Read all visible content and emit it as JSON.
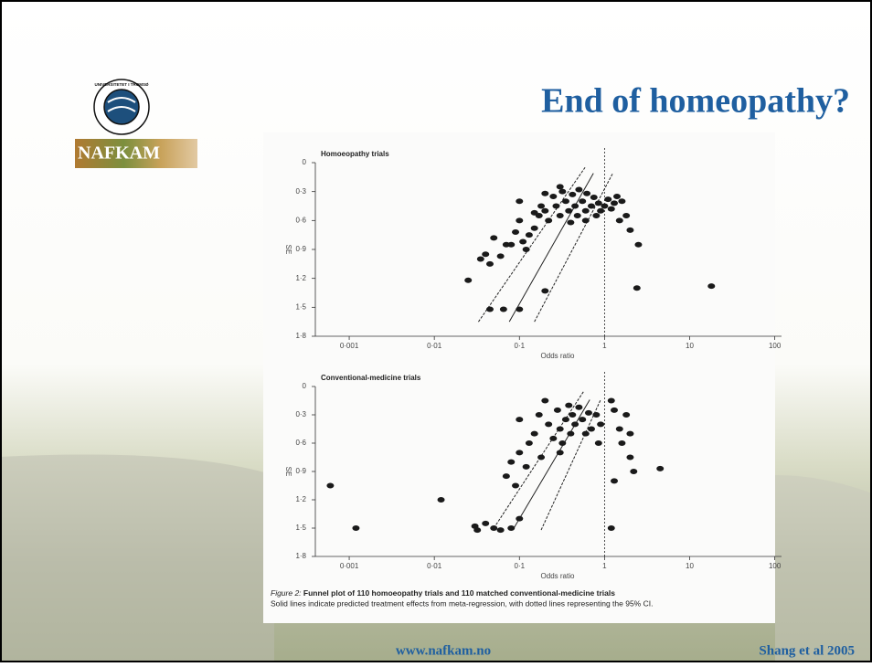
{
  "slide_title": "End of homeopathy?",
  "logos": {
    "university": "UNIVERSITETET I TROMSØ",
    "nafkam": "NAFKAM"
  },
  "footer": {
    "url": "www.nafkam.no",
    "source": "Shang et al 2005"
  },
  "caption": {
    "label": "Figure 2:",
    "title": "Funnel plot of 110 homoeopathy trials and 110 matched conventional-medicine trials",
    "note": "Solid lines indicate predicted treatment effects from meta-regression, with dotted lines representing the 95% CI."
  },
  "chart_data": [
    {
      "type": "scatter",
      "title": "Homoeopathy trials",
      "x_label": "Odds ratio",
      "y_label": "SE",
      "x_log": true,
      "y_reversed": true,
      "xlim": [
        0.0004,
        120
      ],
      "ylim": [
        0,
        1.8
      ],
      "xticks": [
        {
          "value": 0.001,
          "label": "0·001"
        },
        {
          "value": 0.01,
          "label": "0·01"
        },
        {
          "value": 0.1,
          "label": "0·1"
        },
        1,
        10,
        100
      ],
      "yticks": [
        0,
        {
          "value": 0.3,
          "label": "0·3"
        },
        {
          "value": 0.6,
          "label": "0·6"
        },
        {
          "value": 0.9,
          "label": "0·9"
        },
        {
          "value": 1.2,
          "label": "1·2"
        },
        {
          "value": 1.5,
          "label": "1·5"
        },
        {
          "value": 1.8,
          "label": "1·8"
        }
      ],
      "reference_x": 1,
      "series": [
        {
          "color": "#1a1a1a",
          "x": [
            0.025,
            0.035,
            0.04,
            0.045,
            0.05,
            0.06,
            0.07,
            0.08,
            0.045,
            0.065,
            0.1,
            0.2,
            0.09,
            0.1,
            0.12,
            0.11,
            0.13,
            0.15,
            0.17,
            0.1,
            0.18,
            0.2,
            0.22,
            0.25,
            0.27,
            0.3,
            0.32,
            0.35,
            0.38,
            0.4,
            0.42,
            0.45,
            0.48,
            0.5,
            0.55,
            0.6,
            0.62,
            0.7,
            0.75,
            0.8,
            0.85,
            0.9,
            1.0,
            1.1,
            1.2,
            1.3,
            1.4,
            1.5,
            1.6,
            1.8,
            2.0,
            2.5,
            2.4,
            18,
            0.3,
            0.6,
            0.2,
            0.15
          ],
          "values": [
            1.22,
            1.0,
            0.95,
            1.05,
            0.78,
            0.97,
            0.85,
            0.85,
            1.52,
            1.52,
            1.52,
            1.33,
            0.72,
            0.6,
            0.9,
            0.82,
            0.75,
            0.68,
            0.55,
            0.4,
            0.45,
            0.5,
            0.6,
            0.35,
            0.45,
            0.55,
            0.3,
            0.4,
            0.5,
            0.62,
            0.33,
            0.45,
            0.55,
            0.28,
            0.4,
            0.5,
            0.32,
            0.45,
            0.36,
            0.55,
            0.42,
            0.5,
            0.45,
            0.38,
            0.48,
            0.42,
            0.35,
            0.6,
            0.4,
            0.55,
            0.7,
            0.85,
            1.3,
            1.28,
            0.25,
            0.6,
            0.32,
            0.52
          ]
        }
      ],
      "lines": [
        {
          "style": "solid",
          "x": [
            0.076,
            0.74
          ],
          "values": [
            1.65,
            0.11
          ]
        },
        {
          "style": "dotted",
          "x": [
            0.033,
            0.59
          ],
          "values": [
            1.65,
            0.05
          ]
        },
        {
          "style": "dotted",
          "x": [
            0.15,
            1.25
          ],
          "values": [
            1.65,
            0.11
          ]
        }
      ]
    },
    {
      "type": "scatter",
      "title": "Conventional-medicine trials",
      "x_label": "Odds ratio",
      "y_label": "SE",
      "x_log": true,
      "y_reversed": true,
      "xlim": [
        0.0004,
        120
      ],
      "ylim": [
        0,
        1.8
      ],
      "xticks": [
        {
          "value": 0.001,
          "label": "0·001"
        },
        {
          "value": 0.01,
          "label": "0·01"
        },
        {
          "value": 0.1,
          "label": "0·1"
        },
        1,
        10,
        100
      ],
      "yticks": [
        0,
        {
          "value": 0.3,
          "label": "0·3"
        },
        {
          "value": 0.6,
          "label": "0·6"
        },
        {
          "value": 0.9,
          "label": "0·9"
        },
        {
          "value": 1.2,
          "label": "1·2"
        },
        {
          "value": 1.5,
          "label": "1·5"
        },
        {
          "value": 1.8,
          "label": "1·8"
        }
      ],
      "reference_x": 1,
      "series": [
        {
          "color": "#1a1a1a",
          "x": [
            0.0006,
            0.0012,
            0.012,
            0.03,
            0.032,
            0.04,
            0.05,
            0.06,
            0.08,
            0.1,
            0.07,
            0.08,
            0.09,
            0.1,
            0.12,
            0.13,
            0.1,
            0.15,
            0.17,
            0.2,
            0.22,
            0.25,
            0.28,
            0.3,
            0.32,
            0.35,
            0.38,
            0.4,
            0.42,
            0.45,
            0.5,
            0.55,
            0.6,
            0.65,
            0.7,
            0.8,
            0.85,
            0.9,
            1.2,
            1.3,
            1.5,
            1.6,
            1.8,
            2.0,
            2.2,
            1.3,
            1.2,
            4.5,
            2.0,
            0.18,
            0.3
          ],
          "values": [
            1.05,
            1.5,
            1.2,
            1.48,
            1.52,
            1.45,
            1.5,
            1.52,
            1.5,
            1.4,
            0.95,
            0.8,
            1.05,
            0.7,
            0.85,
            0.6,
            0.35,
            0.5,
            0.3,
            0.15,
            0.4,
            0.55,
            0.25,
            0.45,
            0.6,
            0.35,
            0.2,
            0.5,
            0.3,
            0.4,
            0.22,
            0.35,
            0.5,
            0.28,
            0.45,
            0.3,
            0.6,
            0.4,
            0.15,
            0.25,
            0.45,
            0.6,
            0.3,
            0.75,
            0.9,
            1.0,
            1.5,
            0.87,
            0.5,
            0.75,
            0.7
          ]
        }
      ],
      "lines": [
        {
          "style": "solid",
          "x": [
            0.086,
            0.67
          ],
          "values": [
            1.5,
            0.14
          ]
        },
        {
          "style": "dotted",
          "x": [
            0.05,
            0.57
          ],
          "values": [
            1.5,
            0.05
          ]
        },
        {
          "style": "dotted",
          "x": [
            0.18,
            0.9
          ],
          "values": [
            1.52,
            0.14
          ]
        }
      ]
    }
  ]
}
